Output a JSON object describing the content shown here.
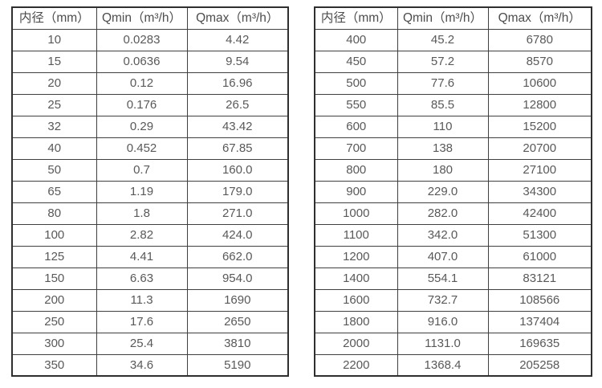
{
  "colors": {
    "background": "#ffffff",
    "text": "#595959",
    "border_outer": "#2f2f2f",
    "border_inner": "#3f3f3f"
  },
  "tables": [
    {
      "name": "small-diameters",
      "headers": [
        "内径（mm）",
        "Qmin（m³/h）",
        "Qmax（m³/h）"
      ],
      "rows": [
        [
          "10",
          "0.0283",
          "4.42"
        ],
        [
          "15",
          "0.0636",
          "9.54"
        ],
        [
          "20",
          "0.12",
          "16.96"
        ],
        [
          "25",
          "0.176",
          "26.5"
        ],
        [
          "32",
          "0.29",
          "43.42"
        ],
        [
          "40",
          "0.452",
          "67.85"
        ],
        [
          "50",
          "0.7",
          "160.0"
        ],
        [
          "65",
          "1.19",
          "179.0"
        ],
        [
          "80",
          "1.8",
          "271.0"
        ],
        [
          "100",
          "2.82",
          "424.0"
        ],
        [
          "125",
          "4.41",
          "662.0"
        ],
        [
          "150",
          "6.63",
          "954.0"
        ],
        [
          "200",
          "11.3",
          "1690"
        ],
        [
          "250",
          "17.6",
          "2650"
        ],
        [
          "300",
          "25.4",
          "3810"
        ],
        [
          "350",
          "34.6",
          "5190"
        ]
      ]
    },
    {
      "name": "large-diameters",
      "headers": [
        "内径（mm）",
        "Qmin（m³/h）",
        "Qmax（m³/h）"
      ],
      "rows": [
        [
          "400",
          "45.2",
          "6780"
        ],
        [
          "450",
          "57.2",
          "8570"
        ],
        [
          "500",
          "77.6",
          "10600"
        ],
        [
          "550",
          "85.5",
          "12800"
        ],
        [
          "600",
          "110",
          "15200"
        ],
        [
          "700",
          "138",
          "20700"
        ],
        [
          "800",
          "180",
          "27100"
        ],
        [
          "900",
          "229.0",
          "34300"
        ],
        [
          "1000",
          "282.0",
          "42400"
        ],
        [
          "1100",
          "342.0",
          "51300"
        ],
        [
          "1200",
          "407.0",
          "61000"
        ],
        [
          "1400",
          "554.1",
          "83121"
        ],
        [
          "1600",
          "732.7",
          "108566"
        ],
        [
          "1800",
          "916.0",
          "137404"
        ],
        [
          "2000",
          "1131.0",
          "169635"
        ],
        [
          "2200",
          "1368.4",
          "205258"
        ]
      ]
    }
  ]
}
